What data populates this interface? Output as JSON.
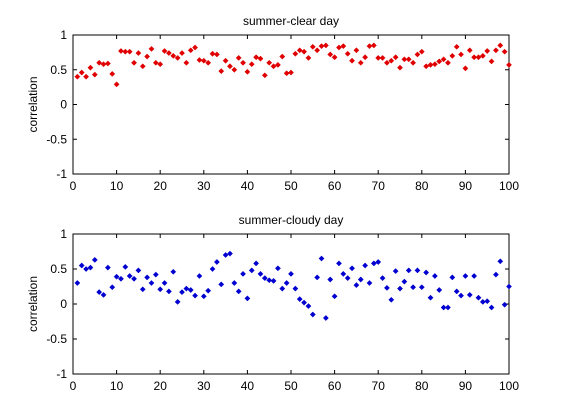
{
  "chart_data": [
    {
      "type": "scatter",
      "title": "summer-clear day",
      "xlabel": "",
      "ylabel": "correlation",
      "xlim": [
        0,
        100
      ],
      "ylim": [
        -1,
        1
      ],
      "xticks": [
        0,
        10,
        20,
        30,
        40,
        50,
        60,
        70,
        80,
        90,
        100
      ],
      "yticks": [
        -1,
        -0.5,
        0,
        0.5,
        1
      ],
      "xtick_labels": [
        "0",
        "10",
        "20",
        "30",
        "40",
        "50",
        "60",
        "70",
        "80",
        "90",
        "100"
      ],
      "ytick_labels": [
        "-1",
        "-0.5",
        "0",
        "0.5",
        "1"
      ],
      "grid": false,
      "marker": "diamond",
      "color": "#e00000",
      "series": [
        {
          "x": [
            1,
            2,
            3,
            4,
            5,
            6,
            7,
            8,
            9,
            10,
            11,
            12,
            13,
            14,
            15,
            16,
            17,
            18,
            19,
            20,
            21,
            22,
            23,
            24,
            25,
            26,
            27,
            28,
            29,
            30,
            31,
            32,
            33,
            34,
            35,
            36,
            37,
            38,
            39,
            40,
            41,
            42,
            43,
            44,
            45,
            46,
            47,
            48,
            49,
            50,
            51,
            52,
            53,
            54,
            55,
            56,
            57,
            58,
            59,
            60,
            61,
            62,
            63,
            64,
            65,
            66,
            67,
            68,
            69,
            70,
            71,
            72,
            73,
            74,
            75,
            76,
            77,
            78,
            79,
            80,
            81,
            82,
            83,
            84,
            85,
            86,
            87,
            88,
            89,
            90,
            91,
            92,
            93,
            94,
            95,
            96,
            97,
            98,
            99,
            100
          ],
          "y": [
            0.4,
            0.46,
            0.4,
            0.53,
            0.43,
            0.6,
            0.58,
            0.59,
            0.44,
            0.29,
            0.77,
            0.76,
            0.76,
            0.6,
            0.74,
            0.55,
            0.69,
            0.8,
            0.6,
            0.58,
            0.77,
            0.74,
            0.7,
            0.67,
            0.74,
            0.6,
            0.78,
            0.82,
            0.64,
            0.63,
            0.6,
            0.73,
            0.72,
            0.48,
            0.63,
            0.55,
            0.5,
            0.67,
            0.6,
            0.47,
            0.58,
            0.68,
            0.66,
            0.42,
            0.6,
            0.55,
            0.57,
            0.69,
            0.45,
            0.46,
            0.73,
            0.78,
            0.76,
            0.67,
            0.83,
            0.78,
            0.84,
            0.85,
            0.72,
            0.68,
            0.82,
            0.84,
            0.73,
            0.63,
            0.78,
            0.6,
            0.68,
            0.84,
            0.85,
            0.67,
            0.67,
            0.6,
            0.63,
            0.68,
            0.53,
            0.65,
            0.65,
            0.6,
            0.72,
            0.76,
            0.55,
            0.57,
            0.58,
            0.62,
            0.65,
            0.6,
            0.7,
            0.83,
            0.72,
            0.52,
            0.78,
            0.68,
            0.68,
            0.7,
            0.77,
            0.62,
            0.78,
            0.85,
            0.76,
            0.57
          ]
        }
      ]
    },
    {
      "type": "scatter",
      "title": "summer-cloudy day",
      "xlabel": "",
      "ylabel": "correlation",
      "xlim": [
        0,
        100
      ],
      "ylim": [
        -1,
        1
      ],
      "xticks": [
        0,
        10,
        20,
        30,
        40,
        50,
        60,
        70,
        80,
        90,
        100
      ],
      "yticks": [
        -1,
        -0.5,
        0,
        0.5,
        1
      ],
      "xtick_labels": [
        "0",
        "10",
        "20",
        "30",
        "40",
        "50",
        "60",
        "70",
        "80",
        "90",
        "100"
      ],
      "ytick_labels": [
        "-1",
        "-0.5",
        "0",
        "0.5",
        "1"
      ],
      "grid": false,
      "marker": "diamond",
      "color": "#0000d0",
      "series": [
        {
          "x": [
            1,
            2,
            3,
            4,
            5,
            6,
            7,
            8,
            9,
            10,
            11,
            12,
            13,
            14,
            15,
            16,
            17,
            18,
            19,
            20,
            21,
            22,
            23,
            24,
            25,
            26,
            27,
            28,
            29,
            30,
            31,
            32,
            33,
            34,
            35,
            36,
            37,
            38,
            39,
            40,
            41,
            42,
            43,
            44,
            45,
            46,
            47,
            48,
            49,
            50,
            51,
            52,
            53,
            54,
            55,
            56,
            57,
            58,
            59,
            60,
            61,
            62,
            63,
            64,
            65,
            66,
            67,
            68,
            69,
            70,
            71,
            72,
            73,
            74,
            75,
            76,
            77,
            78,
            79,
            80,
            81,
            82,
            83,
            84,
            85,
            86,
            87,
            88,
            89,
            90,
            91,
            92,
            93,
            94,
            95,
            96,
            97,
            98,
            99,
            100
          ],
          "y": [
            0.3,
            0.55,
            0.5,
            0.52,
            0.63,
            0.17,
            0.13,
            0.52,
            0.24,
            0.39,
            0.36,
            0.53,
            0.4,
            0.36,
            0.48,
            0.21,
            0.38,
            0.3,
            0.42,
            0.21,
            0.3,
            0.18,
            0.46,
            0.03,
            0.17,
            0.22,
            0.2,
            0.12,
            0.4,
            0.11,
            0.19,
            0.5,
            0.6,
            0.28,
            0.7,
            0.72,
            0.3,
            0.18,
            0.43,
            0.08,
            0.48,
            0.58,
            0.43,
            0.37,
            0.34,
            0.33,
            0.51,
            0.22,
            0.3,
            0.43,
            0.22,
            0.07,
            0.02,
            -0.03,
            -0.15,
            0.38,
            0.65,
            -0.2,
            0.35,
            0.11,
            0.58,
            0.43,
            0.37,
            0.51,
            0.27,
            0.35,
            0.55,
            0.3,
            0.58,
            0.6,
            0.37,
            0.23,
            0.06,
            0.47,
            0.22,
            0.32,
            0.48,
            0.24,
            0.48,
            0.24,
            0.45,
            0.09,
            0.4,
            0.2,
            -0.05,
            -0.05,
            0.38,
            0.18,
            0.12,
            0.4,
            0.13,
            0.4,
            0.09,
            0.03,
            0.04,
            -0.05,
            0.42,
            0.61,
            -0.01,
            0.25
          ]
        }
      ]
    }
  ]
}
